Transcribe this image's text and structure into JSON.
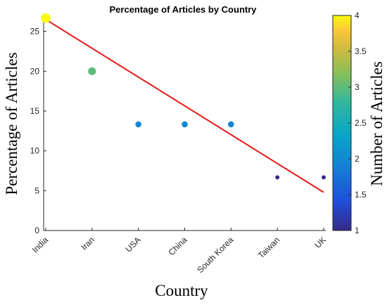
{
  "chart_data": {
    "type": "scatter",
    "title": "Percentage of Articles by Country",
    "xlabel": "Country",
    "ylabel": "Percentage of Articles",
    "categories": [
      "India",
      "Iran",
      "USA",
      "China",
      "South Korea",
      "Taiwan",
      "UK"
    ],
    "values": [
      26.67,
      20.0,
      13.33,
      13.33,
      13.33,
      6.67,
      6.67
    ],
    "article_counts": [
      4,
      3,
      2,
      2,
      2,
      1,
      1
    ],
    "ylim": [
      0,
      27
    ],
    "yticks": [
      0,
      5,
      10,
      15,
      20,
      25
    ],
    "trendline": {
      "start": 26.5,
      "end": 4.8,
      "color": "#e61a1a"
    },
    "colorbar": {
      "label": "Number of Articles",
      "range": [
        1,
        4
      ],
      "ticks": [
        "1",
        "1.5",
        "2",
        "2.5",
        "3",
        "3.5",
        "4"
      ],
      "colormap": "parula"
    },
    "grid": false
  }
}
